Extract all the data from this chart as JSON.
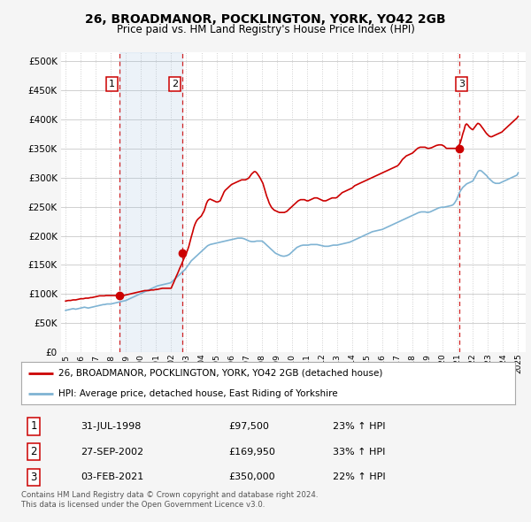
{
  "title": "26, BROADMANOR, POCKLINGTON, YORK, YO42 2GB",
  "subtitle": "Price paid vs. HM Land Registry's House Price Index (HPI)",
  "ytick_values": [
    0,
    50000,
    100000,
    150000,
    200000,
    250000,
    300000,
    350000,
    400000,
    450000,
    500000
  ],
  "xlim_left": 1994.7,
  "xlim_right": 2025.5,
  "ylim": [
    0,
    515000
  ],
  "background_color": "#f5f5f5",
  "plot_bg_color": "#ffffff",
  "grid_color": "#d0d0d0",
  "red_line_color": "#cc0000",
  "blue_line_color": "#7fb3d3",
  "dashed_line_color": "#cc0000",
  "shade_color": "#ddeeff",
  "transactions": [
    {
      "num": 1,
      "date": "31-JUL-1998",
      "price": 97500,
      "pct": "23%",
      "year": 1998.58
    },
    {
      "num": 2,
      "date": "27-SEP-2002",
      "price": 169950,
      "pct": "33%",
      "year": 2002.74
    },
    {
      "num": 3,
      "date": "03-FEB-2021",
      "price": 350000,
      "pct": "22%",
      "year": 2021.09
    }
  ],
  "legend_red": "26, BROADMANOR, POCKLINGTON, YORK, YO42 2GB (detached house)",
  "legend_blue": "HPI: Average price, detached house, East Riding of Yorkshire",
  "footer1": "Contains HM Land Registry data © Crown copyright and database right 2024.",
  "footer2": "This data is licensed under the Open Government Licence v3.0.",
  "hpi_x": [
    1995.0,
    1995.08,
    1995.17,
    1995.25,
    1995.33,
    1995.42,
    1995.5,
    1995.58,
    1995.67,
    1995.75,
    1995.83,
    1995.92,
    1996.0,
    1996.08,
    1996.17,
    1996.25,
    1996.33,
    1996.42,
    1996.5,
    1996.58,
    1996.67,
    1996.75,
    1996.83,
    1996.92,
    1997.0,
    1997.08,
    1997.17,
    1997.25,
    1997.33,
    1997.42,
    1997.5,
    1997.58,
    1997.67,
    1997.75,
    1997.83,
    1997.92,
    1998.0,
    1998.08,
    1998.17,
    1998.25,
    1998.33,
    1998.42,
    1998.5,
    1998.58,
    1998.67,
    1998.75,
    1998.83,
    1998.92,
    1999.0,
    1999.08,
    1999.17,
    1999.25,
    1999.33,
    1999.42,
    1999.5,
    1999.58,
    1999.67,
    1999.75,
    1999.83,
    1999.92,
    2000.0,
    2000.08,
    2000.17,
    2000.25,
    2000.33,
    2000.42,
    2000.5,
    2000.58,
    2000.67,
    2000.75,
    2000.83,
    2000.92,
    2001.0,
    2001.08,
    2001.17,
    2001.25,
    2001.33,
    2001.42,
    2001.5,
    2001.58,
    2001.67,
    2001.75,
    2001.83,
    2001.92,
    2002.0,
    2002.08,
    2002.17,
    2002.25,
    2002.33,
    2002.42,
    2002.5,
    2002.58,
    2002.67,
    2002.75,
    2002.83,
    2002.92,
    2003.0,
    2003.08,
    2003.17,
    2003.25,
    2003.33,
    2003.42,
    2003.5,
    2003.58,
    2003.67,
    2003.75,
    2003.83,
    2003.92,
    2004.0,
    2004.08,
    2004.17,
    2004.25,
    2004.33,
    2004.42,
    2004.5,
    2004.58,
    2004.67,
    2004.75,
    2004.83,
    2004.92,
    2005.0,
    2005.08,
    2005.17,
    2005.25,
    2005.33,
    2005.42,
    2005.5,
    2005.58,
    2005.67,
    2005.75,
    2005.83,
    2005.92,
    2006.0,
    2006.08,
    2006.17,
    2006.25,
    2006.33,
    2006.42,
    2006.5,
    2006.58,
    2006.67,
    2006.75,
    2006.83,
    2006.92,
    2007.0,
    2007.08,
    2007.17,
    2007.25,
    2007.33,
    2007.42,
    2007.5,
    2007.58,
    2007.67,
    2007.75,
    2007.83,
    2007.92,
    2008.0,
    2008.08,
    2008.17,
    2008.25,
    2008.33,
    2008.42,
    2008.5,
    2008.58,
    2008.67,
    2008.75,
    2008.83,
    2008.92,
    2009.0,
    2009.08,
    2009.17,
    2009.25,
    2009.33,
    2009.42,
    2009.5,
    2009.58,
    2009.67,
    2009.75,
    2009.83,
    2009.92,
    2010.0,
    2010.08,
    2010.17,
    2010.25,
    2010.33,
    2010.42,
    2010.5,
    2010.58,
    2010.67,
    2010.75,
    2010.83,
    2010.92,
    2011.0,
    2011.08,
    2011.17,
    2011.25,
    2011.33,
    2011.42,
    2011.5,
    2011.58,
    2011.67,
    2011.75,
    2011.83,
    2011.92,
    2012.0,
    2012.08,
    2012.17,
    2012.25,
    2012.33,
    2012.42,
    2012.5,
    2012.58,
    2012.67,
    2012.75,
    2012.83,
    2012.92,
    2013.0,
    2013.08,
    2013.17,
    2013.25,
    2013.33,
    2013.42,
    2013.5,
    2013.58,
    2013.67,
    2013.75,
    2013.83,
    2013.92,
    2014.0,
    2014.08,
    2014.17,
    2014.25,
    2014.33,
    2014.42,
    2014.5,
    2014.58,
    2014.67,
    2014.75,
    2014.83,
    2014.92,
    2015.0,
    2015.08,
    2015.17,
    2015.25,
    2015.33,
    2015.42,
    2015.5,
    2015.58,
    2015.67,
    2015.75,
    2015.83,
    2015.92,
    2016.0,
    2016.08,
    2016.17,
    2016.25,
    2016.33,
    2016.42,
    2016.5,
    2016.58,
    2016.67,
    2016.75,
    2016.83,
    2016.92,
    2017.0,
    2017.08,
    2017.17,
    2017.25,
    2017.33,
    2017.42,
    2017.5,
    2017.58,
    2017.67,
    2017.75,
    2017.83,
    2017.92,
    2018.0,
    2018.08,
    2018.17,
    2018.25,
    2018.33,
    2018.42,
    2018.5,
    2018.58,
    2018.67,
    2018.75,
    2018.83,
    2018.92,
    2019.0,
    2019.08,
    2019.17,
    2019.25,
    2019.33,
    2019.42,
    2019.5,
    2019.58,
    2019.67,
    2019.75,
    2019.83,
    2019.92,
    2020.0,
    2020.08,
    2020.17,
    2020.25,
    2020.33,
    2020.42,
    2020.5,
    2020.58,
    2020.67,
    2020.75,
    2020.83,
    2020.92,
    2021.0,
    2021.08,
    2021.17,
    2021.25,
    2021.33,
    2021.42,
    2021.5,
    2021.58,
    2021.67,
    2021.75,
    2021.83,
    2021.92,
    2022.0,
    2022.08,
    2022.17,
    2022.25,
    2022.33,
    2022.42,
    2022.5,
    2022.58,
    2022.67,
    2022.75,
    2022.83,
    2022.92,
    2023.0,
    2023.08,
    2023.17,
    2023.25,
    2023.33,
    2023.42,
    2023.5,
    2023.58,
    2023.67,
    2023.75,
    2023.83,
    2023.92,
    2024.0,
    2024.08,
    2024.17,
    2024.25,
    2024.33,
    2024.42,
    2024.5,
    2024.58,
    2024.67,
    2024.75,
    2024.83,
    2024.92,
    2025.0
  ],
  "hpi_y": [
    72000,
    72500,
    73000,
    73500,
    74000,
    74500,
    75000,
    74500,
    74000,
    74500,
    75000,
    75500,
    76000,
    76500,
    77000,
    77500,
    77000,
    76500,
    76000,
    76500,
    77000,
    77500,
    78000,
    78500,
    79000,
    79500,
    80000,
    80500,
    81000,
    81500,
    82000,
    82000,
    82500,
    83000,
    83000,
    83000,
    83000,
    83500,
    84000,
    84500,
    85000,
    85500,
    86000,
    86500,
    87000,
    87500,
    88000,
    88500,
    89000,
    90000,
    91000,
    92000,
    93000,
    94000,
    95000,
    96000,
    97000,
    98000,
    99000,
    100000,
    101000,
    102000,
    103000,
    104000,
    105000,
    106000,
    107000,
    108000,
    109000,
    110000,
    111000,
    112000,
    113000,
    114000,
    114500,
    115000,
    115500,
    116000,
    116500,
    117000,
    117500,
    118000,
    118500,
    119000,
    120000,
    122000,
    124000,
    126000,
    128000,
    130000,
    132000,
    134000,
    136000,
    138000,
    140000,
    142000,
    145000,
    148000,
    151000,
    154000,
    157000,
    159000,
    161000,
    163000,
    165000,
    167000,
    169000,
    171000,
    173000,
    175000,
    177000,
    179000,
    181000,
    183000,
    184000,
    185000,
    185500,
    186000,
    186500,
    187000,
    187500,
    188000,
    188500,
    189000,
    189500,
    190000,
    190500,
    191000,
    191500,
    192000,
    192500,
    193000,
    193500,
    194000,
    194500,
    195000,
    195500,
    196000,
    196000,
    196000,
    196000,
    195500,
    195000,
    194000,
    193000,
    192000,
    191000,
    190500,
    190000,
    190000,
    190000,
    190500,
    191000,
    191000,
    191000,
    191000,
    191000,
    190000,
    188000,
    186000,
    184000,
    182000,
    180000,
    178000,
    176000,
    174000,
    172000,
    170000,
    169000,
    168000,
    167000,
    166000,
    165500,
    165000,
    165000,
    165500,
    166000,
    167000,
    168000,
    170000,
    172000,
    174000,
    176000,
    178000,
    180000,
    181000,
    182000,
    183000,
    183500,
    184000,
    184000,
    184000,
    184000,
    184000,
    184500,
    185000,
    185000,
    185000,
    185000,
    185000,
    185000,
    184500,
    184000,
    183500,
    183000,
    182500,
    182000,
    182000,
    182000,
    182000,
    182500,
    183000,
    183500,
    184000,
    184000,
    184000,
    184000,
    184500,
    185000,
    185500,
    186000,
    186500,
    187000,
    187500,
    188000,
    188500,
    189000,
    190000,
    191000,
    192000,
    193000,
    194000,
    195000,
    196000,
    197000,
    198000,
    199000,
    200000,
    201000,
    202000,
    203000,
    204000,
    205000,
    206000,
    207000,
    207500,
    208000,
    208500,
    209000,
    209500,
    210000,
    210500,
    211000,
    212000,
    213000,
    214000,
    215000,
    216000,
    217000,
    218000,
    219000,
    220000,
    221000,
    222000,
    223000,
    224000,
    225000,
    226000,
    227000,
    228000,
    229000,
    230000,
    231000,
    232000,
    233000,
    234000,
    235000,
    236000,
    237000,
    238000,
    239000,
    240000,
    240500,
    241000,
    241000,
    241000,
    241000,
    240500,
    240000,
    240500,
    241000,
    242000,
    243000,
    244000,
    245000,
    246000,
    247000,
    248000,
    248500,
    249000,
    249000,
    249000,
    249500,
    250000,
    250500,
    251000,
    251500,
    252000,
    253000,
    255000,
    258000,
    262000,
    267000,
    272000,
    277000,
    280000,
    283000,
    285000,
    287000,
    289000,
    290000,
    291000,
    292000,
    293000,
    294000,
    298000,
    302000,
    306000,
    310000,
    312000,
    312000,
    311000,
    309000,
    307000,
    305000,
    303000,
    300000,
    298000,
    296000,
    294000,
    292000,
    291000,
    290000,
    290000,
    290000,
    290000,
    291000,
    292000,
    293000,
    294000,
    295000,
    296000,
    297000,
    298000,
    299000,
    300000,
    301000,
    302000,
    303000,
    304000,
    308000
  ],
  "red_x": [
    1995.0,
    1995.08,
    1995.17,
    1995.25,
    1995.33,
    1995.42,
    1995.5,
    1995.58,
    1995.67,
    1995.75,
    1995.83,
    1995.92,
    1996.0,
    1996.08,
    1996.17,
    1996.25,
    1996.33,
    1996.42,
    1996.5,
    1996.58,
    1996.67,
    1996.75,
    1996.83,
    1996.92,
    1997.0,
    1997.08,
    1997.17,
    1997.25,
    1997.33,
    1997.42,
    1997.5,
    1997.58,
    1997.67,
    1997.75,
    1997.83,
    1997.92,
    1998.0,
    1998.08,
    1998.17,
    1998.25,
    1998.33,
    1998.42,
    1998.5,
    1998.58,
    1998.67,
    1998.75,
    1998.83,
    1998.92,
    1999.0,
    1999.08,
    1999.17,
    1999.25,
    1999.33,
    1999.42,
    1999.5,
    1999.58,
    1999.67,
    1999.75,
    1999.83,
    1999.92,
    2000.0,
    2000.08,
    2000.17,
    2000.25,
    2000.33,
    2000.42,
    2000.5,
    2000.58,
    2000.67,
    2000.75,
    2000.83,
    2000.92,
    2001.0,
    2001.08,
    2001.17,
    2001.25,
    2001.33,
    2001.42,
    2001.5,
    2001.58,
    2001.67,
    2001.75,
    2001.83,
    2001.92,
    2002.0,
    2002.08,
    2002.17,
    2002.25,
    2002.33,
    2002.42,
    2002.5,
    2002.58,
    2002.67,
    2002.75,
    2002.83,
    2002.92,
    2003.0,
    2003.08,
    2003.17,
    2003.25,
    2003.33,
    2003.42,
    2003.5,
    2003.58,
    2003.67,
    2003.75,
    2003.83,
    2003.92,
    2004.0,
    2004.08,
    2004.17,
    2004.25,
    2004.33,
    2004.42,
    2004.5,
    2004.58,
    2004.67,
    2004.75,
    2004.83,
    2004.92,
    2005.0,
    2005.08,
    2005.17,
    2005.25,
    2005.33,
    2005.42,
    2005.5,
    2005.58,
    2005.67,
    2005.75,
    2005.83,
    2005.92,
    2006.0,
    2006.08,
    2006.17,
    2006.25,
    2006.33,
    2006.42,
    2006.5,
    2006.58,
    2006.67,
    2006.75,
    2006.83,
    2006.92,
    2007.0,
    2007.08,
    2007.17,
    2007.25,
    2007.33,
    2007.42,
    2007.5,
    2007.58,
    2007.67,
    2007.75,
    2007.83,
    2007.92,
    2008.0,
    2008.08,
    2008.17,
    2008.25,
    2008.33,
    2008.42,
    2008.5,
    2008.58,
    2008.67,
    2008.75,
    2008.83,
    2008.92,
    2009.0,
    2009.08,
    2009.17,
    2009.25,
    2009.33,
    2009.42,
    2009.5,
    2009.58,
    2009.67,
    2009.75,
    2009.83,
    2009.92,
    2010.0,
    2010.08,
    2010.17,
    2010.25,
    2010.33,
    2010.42,
    2010.5,
    2010.58,
    2010.67,
    2010.75,
    2010.83,
    2010.92,
    2011.0,
    2011.08,
    2011.17,
    2011.25,
    2011.33,
    2011.42,
    2011.5,
    2011.58,
    2011.67,
    2011.75,
    2011.83,
    2011.92,
    2012.0,
    2012.08,
    2012.17,
    2012.25,
    2012.33,
    2012.42,
    2012.5,
    2012.58,
    2012.67,
    2012.75,
    2012.83,
    2012.92,
    2013.0,
    2013.08,
    2013.17,
    2013.25,
    2013.33,
    2013.42,
    2013.5,
    2013.58,
    2013.67,
    2013.75,
    2013.83,
    2013.92,
    2014.0,
    2014.08,
    2014.17,
    2014.25,
    2014.33,
    2014.42,
    2014.5,
    2014.58,
    2014.67,
    2014.75,
    2014.83,
    2014.92,
    2015.0,
    2015.08,
    2015.17,
    2015.25,
    2015.33,
    2015.42,
    2015.5,
    2015.58,
    2015.67,
    2015.75,
    2015.83,
    2015.92,
    2016.0,
    2016.08,
    2016.17,
    2016.25,
    2016.33,
    2016.42,
    2016.5,
    2016.58,
    2016.67,
    2016.75,
    2016.83,
    2016.92,
    2017.0,
    2017.08,
    2017.17,
    2017.25,
    2017.33,
    2017.42,
    2017.5,
    2017.58,
    2017.67,
    2017.75,
    2017.83,
    2017.92,
    2018.0,
    2018.08,
    2018.17,
    2018.25,
    2018.33,
    2018.42,
    2018.5,
    2018.58,
    2018.67,
    2018.75,
    2018.83,
    2018.92,
    2019.0,
    2019.08,
    2019.17,
    2019.25,
    2019.33,
    2019.42,
    2019.5,
    2019.58,
    2019.67,
    2019.75,
    2019.83,
    2019.92,
    2020.0,
    2020.08,
    2020.17,
    2020.25,
    2020.33,
    2020.42,
    2020.5,
    2020.58,
    2020.67,
    2020.75,
    2020.83,
    2020.92,
    2021.0,
    2021.08,
    2021.17,
    2021.25,
    2021.33,
    2021.42,
    2021.5,
    2021.58,
    2021.67,
    2021.75,
    2021.83,
    2021.92,
    2022.0,
    2022.08,
    2022.17,
    2022.25,
    2022.33,
    2022.42,
    2022.5,
    2022.58,
    2022.67,
    2022.75,
    2022.83,
    2022.92,
    2023.0,
    2023.08,
    2023.17,
    2023.25,
    2023.33,
    2023.42,
    2023.5,
    2023.58,
    2023.67,
    2023.75,
    2023.83,
    2023.92,
    2024.0,
    2024.08,
    2024.17,
    2024.25,
    2024.33,
    2024.42,
    2024.5,
    2024.58,
    2024.67,
    2024.75,
    2024.83,
    2024.92,
    2025.0
  ],
  "red_y": [
    88000,
    88500,
    89000,
    89000,
    89000,
    89500,
    90000,
    90000,
    90000,
    90500,
    91000,
    91500,
    92000,
    92000,
    92000,
    92500,
    93000,
    93000,
    93000,
    93500,
    94000,
    94000,
    94500,
    95000,
    95500,
    96000,
    96500,
    97000,
    97000,
    97000,
    97000,
    97000,
    97500,
    97500,
    97500,
    97500,
    97500,
    97500,
    97500,
    97500,
    97500,
    97500,
    97500,
    97500,
    97500,
    97500,
    97500,
    98000,
    98500,
    99000,
    99500,
    100000,
    100500,
    101000,
    101500,
    102000,
    102500,
    103000,
    103500,
    104000,
    104500,
    105000,
    105500,
    106000,
    106000,
    106000,
    106000,
    106500,
    107000,
    107000,
    107000,
    107500,
    108000,
    108000,
    108500,
    109000,
    109500,
    110000,
    110000,
    110000,
    110000,
    110000,
    110000,
    110000,
    110000,
    115000,
    120000,
    125000,
    130000,
    135000,
    140000,
    145000,
    150000,
    155000,
    160000,
    165000,
    169950,
    175000,
    182000,
    190000,
    198000,
    206000,
    214000,
    220000,
    225000,
    228000,
    230000,
    232000,
    234000,
    238000,
    242000,
    248000,
    255000,
    260000,
    262000,
    263000,
    262000,
    261000,
    260000,
    259000,
    258000,
    258000,
    259000,
    260000,
    265000,
    270000,
    275000,
    278000,
    280000,
    282000,
    284000,
    286000,
    288000,
    289000,
    290000,
    291000,
    292000,
    293000,
    294000,
    295000,
    296000,
    296000,
    296000,
    296000,
    297000,
    298000,
    300000,
    303000,
    306000,
    308000,
    310000,
    310000,
    308000,
    305000,
    302000,
    298000,
    294000,
    290000,
    282000,
    275000,
    268000,
    262000,
    256000,
    252000,
    248000,
    246000,
    244000,
    243000,
    242000,
    241000,
    240000,
    240000,
    240000,
    240000,
    240000,
    241000,
    242000,
    244000,
    246000,
    248000,
    250000,
    252000,
    254000,
    256000,
    258000,
    260000,
    261000,
    262000,
    262000,
    262000,
    262000,
    261000,
    260000,
    260000,
    261000,
    262000,
    263000,
    264000,
    265000,
    265000,
    265000,
    264000,
    263000,
    262000,
    261000,
    260000,
    260000,
    260000,
    261000,
    262000,
    263000,
    264000,
    265000,
    265000,
    265000,
    265000,
    266000,
    268000,
    270000,
    272000,
    274000,
    275000,
    276000,
    277000,
    278000,
    279000,
    280000,
    281000,
    282000,
    284000,
    286000,
    287000,
    288000,
    289000,
    290000,
    291000,
    292000,
    293000,
    294000,
    295000,
    296000,
    297000,
    298000,
    299000,
    300000,
    301000,
    302000,
    303000,
    304000,
    305000,
    306000,
    307000,
    308000,
    309000,
    310000,
    311000,
    312000,
    313000,
    314000,
    315000,
    316000,
    317000,
    318000,
    319000,
    320000,
    322000,
    325000,
    328000,
    331000,
    333000,
    335000,
    337000,
    338000,
    339000,
    340000,
    341000,
    342000,
    344000,
    346000,
    348000,
    350000,
    351000,
    352000,
    352000,
    352000,
    352000,
    352000,
    351000,
    350000,
    350000,
    350500,
    351000,
    352000,
    353000,
    354000,
    355000,
    355500,
    356000,
    356000,
    356000,
    355000,
    354000,
    352000,
    350000,
    350000,
    350000,
    350000,
    350000,
    350000,
    350000,
    350000,
    350000,
    350000,
    355000,
    360000,
    367000,
    375000,
    382000,
    390000,
    392000,
    390000,
    387000,
    385000,
    383000,
    382000,
    385000,
    388000,
    391000,
    393000,
    392000,
    390000,
    387000,
    384000,
    381000,
    378000,
    375000,
    373000,
    371000,
    370000,
    370000,
    371000,
    372000,
    373000,
    374000,
    375000,
    376000,
    377000,
    378000,
    380000,
    382000,
    384000,
    386000,
    388000,
    390000,
    392000,
    394000,
    396000,
    398000,
    400000,
    402000,
    405000
  ]
}
